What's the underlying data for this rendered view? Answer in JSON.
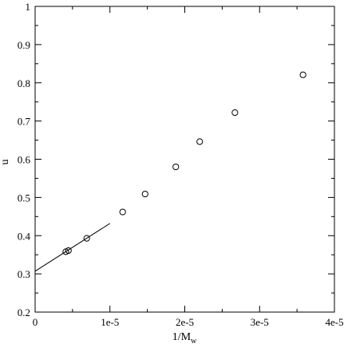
{
  "chart_data": {
    "type": "scatter",
    "title": "",
    "xlabel": "1/M",
    "xlabel_subscript": "w",
    "ylabel": "u",
    "xlim": [
      0,
      4e-05
    ],
    "ylim": [
      0.2,
      1.0
    ],
    "grid": false,
    "x_ticks": [
      0,
      1e-05,
      2e-05,
      3e-05,
      4e-05
    ],
    "x_tick_labels": [
      "0",
      "1e-5",
      "2e-5",
      "3e-5",
      "4e-5"
    ],
    "y_ticks": [
      0.2,
      0.3,
      0.4,
      0.5,
      0.6,
      0.7,
      0.8,
      0.9,
      1.0
    ],
    "y_tick_labels": [
      "0.2",
      "0.3",
      "0.4",
      "0.5",
      "0.6",
      "0.7",
      "0.8",
      "0.9",
      "1"
    ],
    "series": [
      {
        "marker": "circle-open",
        "x": [
          4.1e-06,
          4.45e-06,
          6.9e-06,
          1.17e-05,
          1.47e-05,
          1.88e-05,
          2.2e-05,
          2.67e-05,
          3.58e-05
        ],
        "y": [
          0.358,
          0.361,
          0.393,
          0.462,
          0.509,
          0.58,
          0.646,
          0.722,
          0.821
        ]
      }
    ],
    "fit_line": {
      "style": "solid",
      "x": [
        0,
        1e-05
      ],
      "y": [
        0.307,
        0.432
      ]
    }
  }
}
